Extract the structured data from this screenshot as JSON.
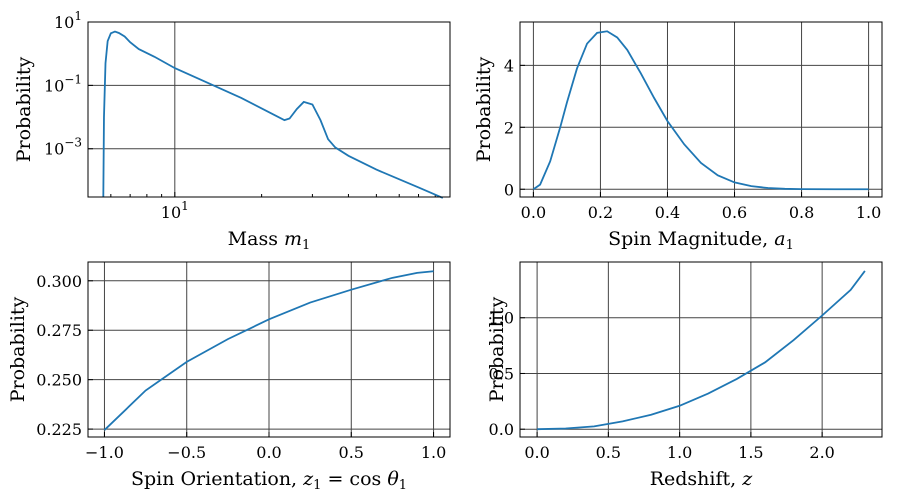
{
  "colors": {
    "series": "#1f77b4",
    "grid": "#444444"
  },
  "chart_data": [
    {
      "type": "line",
      "xlabel": "Mass",
      "xlabel_var": "m",
      "xlabel_sub": "1",
      "ylabel": "Probability",
      "xscale": "log",
      "yscale": "log",
      "xlim": [
        5.0,
        90.0
      ],
      "ylim": [
        3e-05,
        10
      ],
      "yticks": [
        {
          "value": 10,
          "mant": "10",
          "exp": "1"
        },
        {
          "value": 0.1,
          "mant": "10",
          "exp": "−1"
        },
        {
          "value": 0.001,
          "mant": "10",
          "exp": "−3"
        }
      ],
      "xticks": [
        {
          "value": 10,
          "mant": "10",
          "exp": "1"
        }
      ],
      "x": [
        5.65,
        5.68,
        5.75,
        5.85,
        6.0,
        6.2,
        6.4,
        6.7,
        7.0,
        7.5,
        8.5,
        10.0,
        13.0,
        17.0,
        22.0,
        24.0,
        25.0,
        26.5,
        28.0,
        30.0,
        32.0,
        34.0,
        36.0,
        40.0,
        50.0,
        70.0,
        85.0
      ],
      "y": [
        3e-05,
        0.01,
        0.5,
        2.5,
        4.4,
        5.0,
        4.5,
        3.5,
        2.3,
        1.4,
        0.8,
        0.35,
        0.12,
        0.04,
        0.012,
        0.008,
        0.009,
        0.018,
        0.03,
        0.025,
        0.008,
        0.002,
        0.0011,
        0.0006,
        0.00022,
        6e-05,
        2.8e-05
      ]
    },
    {
      "type": "line",
      "xlabel": "Spin Magnitude,",
      "xlabel_var": "a",
      "xlabel_sub": "1",
      "ylabel": "Probability",
      "xlim": [
        -0.04,
        1.04
      ],
      "ylim": [
        -0.25,
        5.4
      ],
      "xticks": [
        0.0,
        0.2,
        0.4,
        0.6,
        0.8,
        1.0
      ],
      "xtick_labels": [
        "0.0",
        "0.2",
        "0.4",
        "0.6",
        "0.8",
        "1.0"
      ],
      "yticks": [
        0,
        2,
        4
      ],
      "ytick_labels": [
        "0",
        "2",
        "4"
      ],
      "x": [
        0.0,
        0.02,
        0.05,
        0.08,
        0.1,
        0.13,
        0.16,
        0.19,
        0.22,
        0.25,
        0.28,
        0.32,
        0.36,
        0.4,
        0.45,
        0.5,
        0.55,
        0.6,
        0.65,
        0.7,
        0.75,
        0.8,
        0.9,
        1.0
      ],
      "y": [
        0.0,
        0.15,
        0.9,
        2.0,
        2.8,
        3.9,
        4.7,
        5.05,
        5.1,
        4.9,
        4.5,
        3.75,
        2.95,
        2.2,
        1.45,
        0.85,
        0.45,
        0.22,
        0.1,
        0.04,
        0.015,
        0.005,
        0.001,
        0.0
      ]
    },
    {
      "type": "line",
      "xlabel": "Spin Orientation,",
      "xlabel_var": "z",
      "xlabel_sub": "1",
      "xlabel_eq": "= cos",
      "xlabel_var2": "θ",
      "xlabel_sub2": "1",
      "ylabel": "Probability",
      "xlim": [
        -1.1,
        1.1
      ],
      "ylim": [
        0.221,
        0.3095
      ],
      "xticks": [
        -1.0,
        -0.5,
        0.0,
        0.5,
        1.0
      ],
      "xtick_labels": [
        "−1.0",
        "−0.5",
        "0.0",
        "0.5",
        "1.0"
      ],
      "yticks": [
        0.225,
        0.25,
        0.275,
        0.3
      ],
      "ytick_labels": [
        "0.225",
        "0.250",
        "0.275",
        "0.300"
      ],
      "x": [
        -1.0,
        -0.75,
        -0.5,
        -0.25,
        0.0,
        0.25,
        0.5,
        0.75,
        0.9,
        1.0
      ],
      "y": [
        0.2245,
        0.2445,
        0.259,
        0.2705,
        0.2805,
        0.289,
        0.2955,
        0.3015,
        0.304,
        0.3048
      ]
    },
    {
      "type": "line",
      "xlabel": "Redshift,",
      "xlabel_var": "z",
      "xlabel_sub": "",
      "ylabel": "Probability",
      "xlim": [
        -0.12,
        2.42
      ],
      "ylim": [
        -0.07,
        1.5
      ],
      "xticks": [
        0.0,
        0.5,
        1.0,
        1.5,
        2.0
      ],
      "xtick_labels": [
        "0.0",
        "0.5",
        "1.0",
        "1.5",
        "2.0"
      ],
      "yticks": [
        0.0,
        0.5,
        1.0
      ],
      "ytick_labels": [
        "0.0",
        "0.5",
        "1.0"
      ],
      "x": [
        0.0,
        0.2,
        0.4,
        0.6,
        0.8,
        1.0,
        1.2,
        1.4,
        1.6,
        1.8,
        2.0,
        2.2,
        2.3
      ],
      "y": [
        0.0,
        0.006,
        0.025,
        0.07,
        0.13,
        0.21,
        0.32,
        0.45,
        0.6,
        0.8,
        1.02,
        1.25,
        1.42
      ]
    }
  ]
}
